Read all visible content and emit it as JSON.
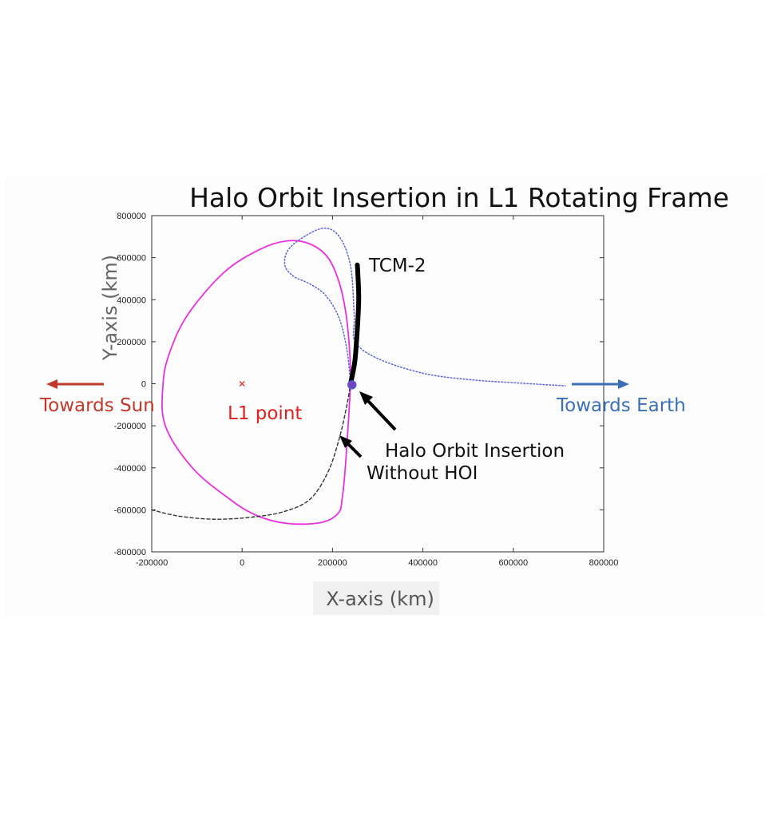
{
  "chart_data": {
    "type": "line",
    "title": "Halo Orbit Insertion in L1 Rotating Frame",
    "xlabel": "X-axis (km)",
    "ylabel": "Y-axis (km)",
    "xlim": [
      -200000,
      800000
    ],
    "ylim": [
      -800000,
      800000
    ],
    "xticks": [
      "-200000",
      "0",
      "200000",
      "400000",
      "600000",
      "800000"
    ],
    "yticks": [
      "800000",
      "600000",
      "400000",
      "200000",
      "0",
      "-200000",
      "-400000",
      "-600000",
      "-800000"
    ],
    "grid": false,
    "series": [
      {
        "style": "solid",
        "color": "#e830e0",
        "points": [
          [
            240000,
            0
          ],
          [
            236000,
            -150000
          ],
          [
            229000,
            -380000
          ],
          [
            222000,
            -535000
          ],
          [
            213000,
            -615000
          ],
          [
            175000,
            -660000
          ],
          [
            100000,
            -665000
          ],
          [
            30000,
            -625000
          ],
          [
            -30000,
            -545000
          ],
          [
            -110000,
            -400000
          ],
          [
            -170000,
            -200000
          ],
          [
            -175000,
            0
          ],
          [
            -160000,
            150000
          ],
          [
            -120000,
            330000
          ],
          [
            -40000,
            530000
          ],
          [
            40000,
            640000
          ],
          [
            100000,
            680000
          ],
          [
            150000,
            665000
          ],
          [
            190000,
            600000
          ],
          [
            215000,
            480000
          ],
          [
            230000,
            330000
          ],
          [
            238000,
            150000
          ],
          [
            240000,
            0
          ]
        ]
      },
      {
        "style": "dotted",
        "color": "#5a64d8",
        "points": [
          [
            240000,
            0
          ],
          [
            232000,
            160000
          ],
          [
            215000,
            310000
          ],
          [
            185000,
            420000
          ],
          [
            150000,
            475000
          ],
          [
            115000,
            510000
          ],
          [
            95000,
            560000
          ],
          [
            100000,
            630000
          ],
          [
            130000,
            690000
          ],
          [
            180000,
            740000
          ],
          [
            215000,
            700000
          ],
          [
            240000,
            560000
          ],
          [
            248000,
            320000
          ],
          [
            250000,
            200000
          ],
          [
            300000,
            120000
          ],
          [
            400000,
            50000
          ],
          [
            500000,
            20000
          ],
          [
            600000,
            5000
          ],
          [
            715000,
            -10000
          ]
        ]
      },
      {
        "style": "dashed",
        "color": "#333333",
        "points": [
          [
            -200000,
            -600000
          ],
          [
            -140000,
            -630000
          ],
          [
            -60000,
            -645000
          ],
          [
            20000,
            -635000
          ],
          [
            90000,
            -610000
          ],
          [
            150000,
            -550000
          ],
          [
            190000,
            -420000
          ],
          [
            215000,
            -260000
          ],
          [
            232000,
            -100000
          ],
          [
            240000,
            0
          ]
        ]
      },
      {
        "style": "thick",
        "color": "#000000",
        "points": [
          [
            240000,
            0
          ],
          [
            249000,
            100000
          ],
          [
            253000,
            200000
          ],
          [
            256000,
            300000
          ],
          [
            258000,
            400000
          ],
          [
            257000,
            480000
          ],
          [
            255000,
            565000
          ]
        ]
      }
    ],
    "markers": [
      {
        "x": 0,
        "y": 0,
        "symbol": "x",
        "color": "#e83030"
      },
      {
        "x": 243000,
        "y": -5000,
        "symbol": "dot",
        "color": "#7b3fbf"
      }
    ],
    "annotations": [
      {
        "text": "TCM-2",
        "x": 280000,
        "y": 560000,
        "color": "#111111"
      },
      {
        "text": "L1 point",
        "x": 0,
        "y": -135000,
        "color": "#e02020"
      },
      {
        "text": "Halo Orbit Insertion",
        "x": 315000,
        "y": -320000,
        "color": "#111111"
      },
      {
        "text": "Without HOI",
        "x": 270000,
        "y": -420000,
        "color": "#111111"
      },
      {
        "text": "Towards Sun",
        "color": "#c0392b"
      },
      {
        "text": "Towards Earth",
        "color": "#3a6fb7"
      }
    ]
  }
}
